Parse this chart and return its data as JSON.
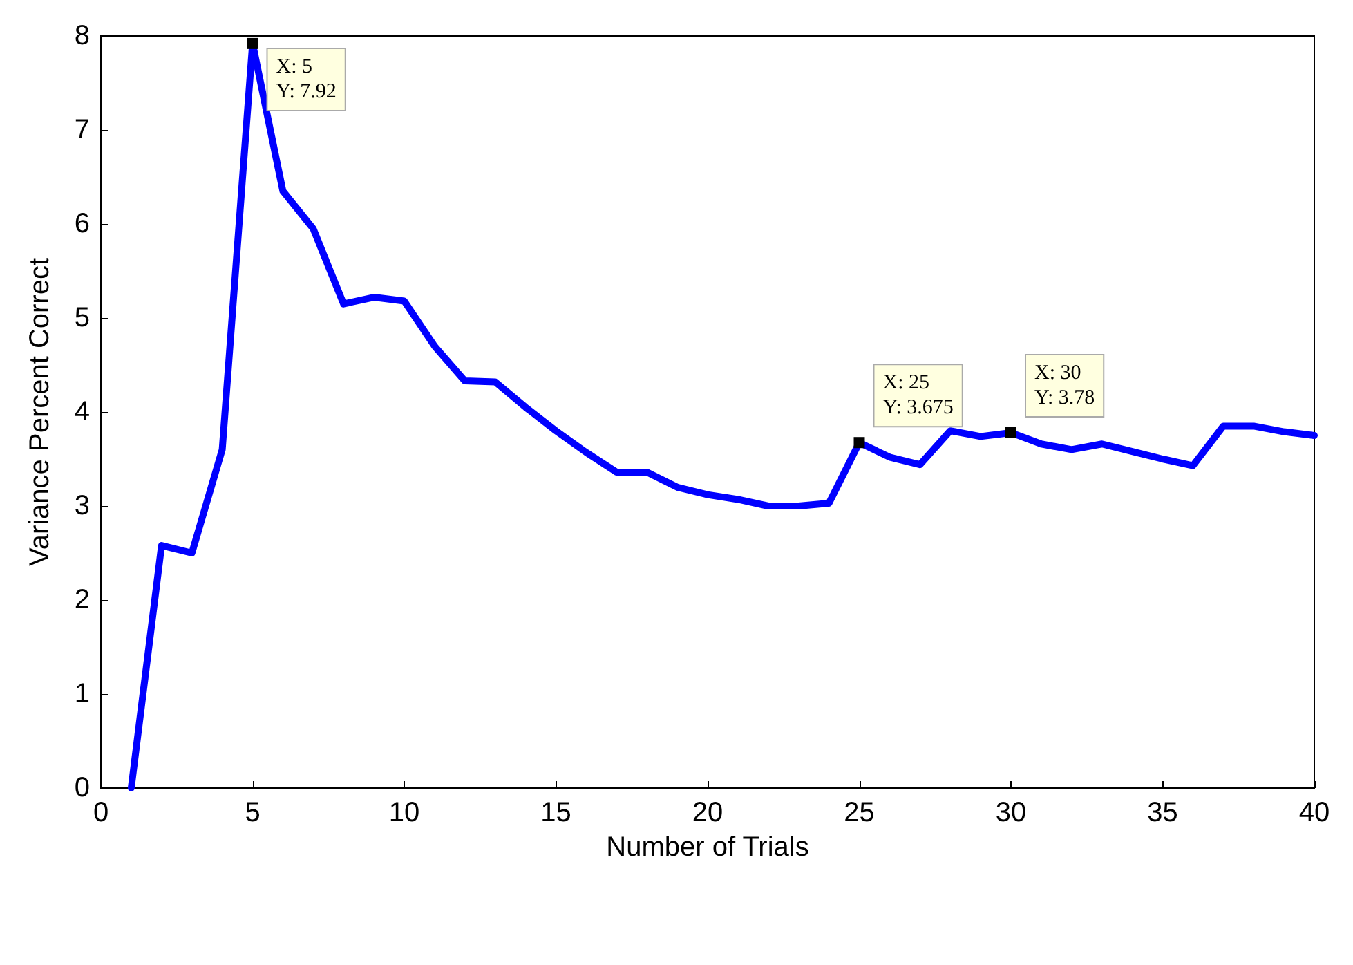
{
  "chart_data": {
    "type": "line",
    "xlabel": "Number of Trials",
    "ylabel": "Variance Percent Correct",
    "x": [
      1,
      2,
      3,
      4,
      5,
      6,
      7,
      8,
      9,
      10,
      11,
      12,
      13,
      14,
      15,
      16,
      17,
      18,
      19,
      20,
      21,
      22,
      23,
      24,
      25,
      26,
      27,
      28,
      29,
      30,
      31,
      32,
      33,
      34,
      35,
      36,
      37,
      38,
      39,
      40
    ],
    "series": [
      {
        "color": "#0000ff",
        "values": [
          0,
          2.58,
          2.5,
          3.6,
          7.92,
          6.35,
          5.95,
          5.15,
          5.22,
          5.18,
          4.7,
          4.33,
          4.32,
          4.05,
          3.8,
          3.57,
          3.36,
          3.36,
          3.2,
          3.12,
          3.07,
          3.0,
          3.0,
          3.03,
          3.675,
          3.52,
          3.44,
          3.8,
          3.74,
          3.78,
          3.66,
          3.6,
          3.66,
          3.58,
          3.5,
          3.43,
          3.85,
          3.85,
          3.79,
          3.75
        ]
      }
    ],
    "annotations": [
      {
        "text": "X: 5\nY: 7.92",
        "x": 5,
        "y": 7.92
      },
      {
        "text": "X: 25\nY: 3.675",
        "x": 25,
        "y": 3.675
      },
      {
        "text": "X: 30\nY: 3.78",
        "x": 30,
        "y": 3.78
      }
    ],
    "xlim": [
      0,
      40
    ],
    "xticks": [
      0,
      5,
      10,
      15,
      20,
      25,
      30,
      35,
      40
    ],
    "ylim": [
      0,
      8
    ],
    "yticks": [
      0,
      1,
      2,
      3,
      4,
      5,
      6,
      7,
      8
    ],
    "grid": false,
    "marker": "none",
    "line_style": "solid"
  }
}
